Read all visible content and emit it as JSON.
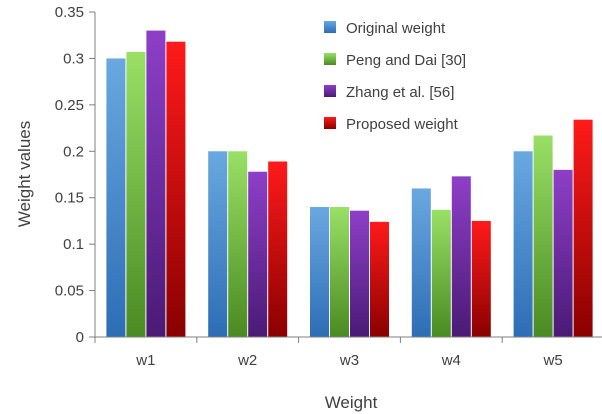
{
  "chart_data": {
    "type": "bar",
    "title": "",
    "xlabel": "Weight",
    "ylabel": "Weight values",
    "categories": [
      "w1",
      "w2",
      "w3",
      "w4",
      "w5"
    ],
    "ylim": [
      0,
      0.35
    ],
    "yticks": [
      "0",
      "0.05",
      "0.1",
      "0.15",
      "0.2",
      "0.25",
      "0.3",
      "0.35"
    ],
    "grid": false,
    "legend_position": "top-right",
    "series": [
      {
        "name": "Original weight",
        "values": [
          0.3,
          0.2,
          0.14,
          0.16,
          0.2
        ],
        "color_top": "#6aa8e0",
        "color_bottom": "#2d6db5"
      },
      {
        "name": "Peng and Dai [30]",
        "values": [
          0.307,
          0.2,
          0.14,
          0.137,
          0.217
        ],
        "color_top": "#99e066",
        "color_bottom": "#4a8a22"
      },
      {
        "name": "Zhang et al. [56]",
        "values": [
          0.33,
          0.178,
          0.136,
          0.173,
          0.18
        ],
        "color_top": "#8e3fc8",
        "color_bottom": "#4a1a75"
      },
      {
        "name": "Proposed weight",
        "values": [
          0.318,
          0.189,
          0.124,
          0.125,
          0.234
        ],
        "color_top": "#ff1a1a",
        "color_bottom": "#8a0000"
      }
    ]
  }
}
